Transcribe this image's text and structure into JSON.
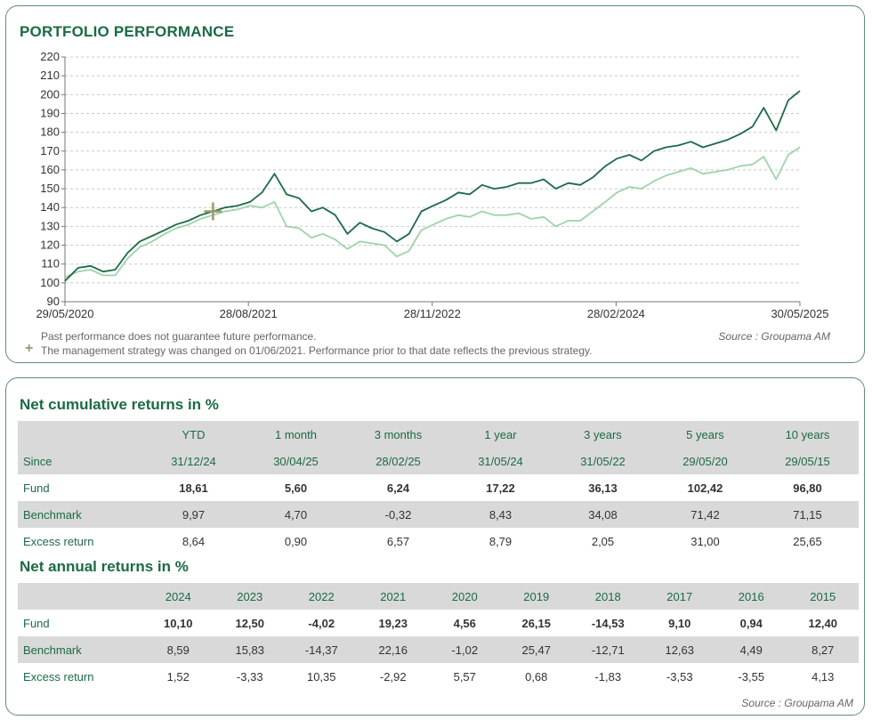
{
  "perf": {
    "title": "PORTFOLIO PERFORMANCE",
    "note_past": "Past performance does not guarantee future performance.",
    "note_strategy": "The management strategy was changed on 01/06/2021. Performance prior to that date reflects the previous strategy.",
    "strategy_marker": "+",
    "source": "Source : Groupama AM"
  },
  "chart_data": {
    "type": "line",
    "title": "PORTFOLIO PERFORMANCE",
    "xlabel": "",
    "ylabel": "",
    "ylim": [
      90,
      220
    ],
    "yticks": [
      90,
      100,
      110,
      120,
      130,
      140,
      150,
      160,
      170,
      180,
      190,
      200,
      210,
      220
    ],
    "xtick_labels": [
      "29/05/2020",
      "28/08/2021",
      "28/11/2022",
      "28/02/2024",
      "30/05/2025"
    ],
    "xlim": [
      "29/05/2020",
      "30/05/2025"
    ],
    "grid": true,
    "colors": {
      "fund": "#1b6b44",
      "benchmark": "#9fd3a8",
      "marker": "#9a9a6a"
    },
    "strategy_change": {
      "date": "01/06/2021",
      "value": 138
    },
    "series": [
      {
        "x": [
          "29/05/2020",
          "01/07/2020",
          "01/08/2020",
          "01/09/2020",
          "01/10/2020",
          "01/11/2020",
          "01/12/2020",
          "01/01/2021",
          "01/02/2021",
          "01/03/2021",
          "01/04/2021",
          "01/05/2021",
          "01/06/2021",
          "01/07/2021",
          "01/08/2021",
          "01/09/2021",
          "01/10/2021",
          "01/11/2021",
          "01/12/2021",
          "01/01/2022",
          "01/02/2022",
          "01/03/2022",
          "01/04/2022",
          "01/05/2022",
          "01/06/2022",
          "01/07/2022",
          "01/08/2022",
          "01/09/2022",
          "01/10/2022",
          "01/11/2022",
          "01/12/2022",
          "01/01/2023",
          "01/02/2023",
          "01/03/2023",
          "01/04/2023",
          "01/05/2023",
          "01/06/2023",
          "01/07/2023",
          "01/08/2023",
          "01/09/2023",
          "01/10/2023",
          "01/11/2023",
          "01/12/2023",
          "01/01/2024",
          "01/02/2024",
          "01/03/2024",
          "01/04/2024",
          "01/05/2024",
          "01/06/2024",
          "01/07/2024",
          "01/08/2024",
          "01/09/2024",
          "01/10/2024",
          "01/11/2024",
          "01/12/2024",
          "01/01/2025",
          "01/02/2025",
          "01/03/2025",
          "01/04/2025",
          "01/05/2025",
          "30/05/2025"
        ],
        "values": [
          101,
          108,
          109,
          106,
          107,
          116,
          122,
          125,
          128,
          131,
          133,
          136,
          138,
          140,
          141,
          143,
          148,
          158,
          147,
          145,
          138,
          140,
          136,
          126,
          132,
          129,
          127,
          122,
          126,
          138,
          141,
          144,
          148,
          147,
          152,
          150,
          151,
          153,
          153,
          155,
          150,
          153,
          152,
          156,
          162,
          166,
          168,
          165,
          170,
          172,
          173,
          175,
          172,
          174,
          176,
          179,
          183,
          193,
          181,
          197,
          202
        ]
      },
      {
        "x": [
          "29/05/2020",
          "01/07/2020",
          "01/08/2020",
          "01/09/2020",
          "01/10/2020",
          "01/11/2020",
          "01/12/2020",
          "01/01/2021",
          "01/02/2021",
          "01/03/2021",
          "01/04/2021",
          "01/05/2021",
          "01/06/2021",
          "01/07/2021",
          "01/08/2021",
          "01/09/2021",
          "01/10/2021",
          "01/11/2021",
          "01/12/2021",
          "01/01/2022",
          "01/02/2022",
          "01/03/2022",
          "01/04/2022",
          "01/05/2022",
          "01/06/2022",
          "01/07/2022",
          "01/08/2022",
          "01/09/2022",
          "01/10/2022",
          "01/11/2022",
          "01/12/2022",
          "01/01/2023",
          "01/02/2023",
          "01/03/2023",
          "01/04/2023",
          "01/05/2023",
          "01/06/2023",
          "01/07/2023",
          "01/08/2023",
          "01/09/2023",
          "01/10/2023",
          "01/11/2023",
          "01/12/2023",
          "01/01/2024",
          "01/02/2024",
          "01/03/2024",
          "01/04/2024",
          "01/05/2024",
          "01/06/2024",
          "01/07/2024",
          "01/08/2024",
          "01/09/2024",
          "01/10/2024",
          "01/11/2024",
          "01/12/2024",
          "01/01/2025",
          "01/02/2025",
          "01/03/2025",
          "01/04/2025",
          "01/05/2025",
          "30/05/2025"
        ],
        "values": [
          103,
          106,
          107,
          104,
          104,
          113,
          119,
          122,
          126,
          129,
          131,
          134,
          136,
          138,
          139,
          141,
          140,
          143,
          130,
          129,
          124,
          126,
          123,
          118,
          122,
          121,
          120,
          114,
          117,
          128,
          131,
          134,
          136,
          135,
          138,
          136,
          136,
          137,
          134,
          135,
          130,
          133,
          133,
          138,
          143,
          148,
          151,
          150,
          154,
          157,
          159,
          161,
          158,
          159,
          160,
          162,
          163,
          167,
          155,
          168,
          172
        ]
      }
    ]
  },
  "cumulative": {
    "title": "Net cumulative returns in %",
    "periods": [
      "YTD",
      "1 month",
      "3 months",
      "1 year",
      "3 years",
      "5 years",
      "10 years"
    ],
    "since_label": "Since",
    "since": [
      "31/12/24",
      "30/04/25",
      "28/02/25",
      "31/05/24",
      "31/05/22",
      "29/05/20",
      "29/05/15"
    ],
    "rows": [
      {
        "label": "Fund",
        "values": [
          "18,61",
          "5,60",
          "6,24",
          "17,22",
          "36,13",
          "102,42",
          "96,80"
        ]
      },
      {
        "label": "Benchmark",
        "values": [
          "9,97",
          "4,70",
          "-0,32",
          "8,43",
          "34,08",
          "71,42",
          "71,15"
        ]
      },
      {
        "label": "Excess return",
        "values": [
          "8,64",
          "0,90",
          "6,57",
          "8,79",
          "2,05",
          "31,00",
          "25,65"
        ]
      }
    ]
  },
  "annual": {
    "title": "Net annual returns in %",
    "years": [
      "2024",
      "2023",
      "2022",
      "2021",
      "2020",
      "2019",
      "2018",
      "2017",
      "2016",
      "2015"
    ],
    "rows": [
      {
        "label": "Fund",
        "values": [
          "10,10",
          "12,50",
          "-4,02",
          "19,23",
          "4,56",
          "26,15",
          "-14,53",
          "9,10",
          "0,94",
          "12,40"
        ]
      },
      {
        "label": "Benchmark",
        "values": [
          "8,59",
          "15,83",
          "-14,37",
          "22,16",
          "-1,02",
          "25,47",
          "-12,71",
          "12,63",
          "4,49",
          "8,27"
        ]
      },
      {
        "label": "Excess return",
        "values": [
          "1,52",
          "-3,33",
          "10,35",
          "-2,92",
          "5,57",
          "0,68",
          "-1,83",
          "-3,53",
          "-3,55",
          "4,13"
        ]
      }
    ],
    "source": "Source : Groupama AM"
  }
}
